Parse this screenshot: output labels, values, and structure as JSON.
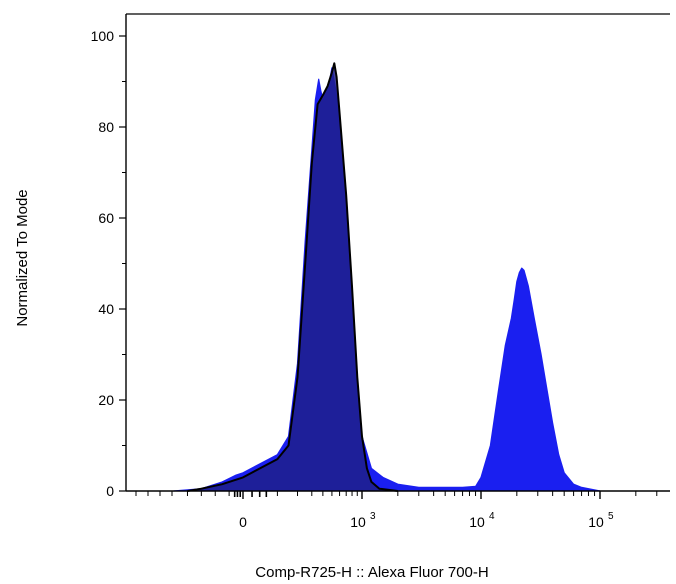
{
  "chart_data": {
    "type": "area",
    "title": "",
    "xlabel": "Comp-R725-H :: Alexa Fluor 700-H",
    "ylabel": "Normalized To Mode",
    "x_scale": "biexponential",
    "xlim": [
      -500,
      400000
    ],
    "ylim": [
      0,
      104
    ],
    "y_ticks": [
      0,
      20,
      40,
      60,
      80,
      100
    ],
    "x_ticks": [
      {
        "value": 0,
        "base": "0",
        "exp": ""
      },
      {
        "value": 1000,
        "base": "10",
        "exp": "3"
      },
      {
        "value": 10000,
        "base": "10",
        "exp": "4"
      },
      {
        "value": 100000,
        "base": "10",
        "exp": "5"
      }
    ],
    "grid": false,
    "legend": "none",
    "series": [
      {
        "fill": "#1a1ff0",
        "stroke": "#1a1ff0",
        "points": [
          [
            -500,
            0
          ],
          [
            -300,
            0.5
          ],
          [
            -150,
            2
          ],
          [
            -50,
            3.5
          ],
          [
            0,
            4
          ],
          [
            100,
            8
          ],
          [
            150,
            12
          ],
          [
            200,
            28
          ],
          [
            250,
            55
          ],
          [
            300,
            75
          ],
          [
            330,
            86
          ],
          [
            360,
            90.5
          ],
          [
            380,
            88
          ],
          [
            400,
            86
          ],
          [
            430,
            88
          ],
          [
            470,
            90
          ],
          [
            500,
            93
          ],
          [
            550,
            88
          ],
          [
            600,
            82
          ],
          [
            700,
            65
          ],
          [
            800,
            45
          ],
          [
            900,
            25
          ],
          [
            1000,
            12
          ],
          [
            1200,
            5
          ],
          [
            1500,
            3
          ],
          [
            2000,
            1.5
          ],
          [
            3000,
            0.8
          ],
          [
            5000,
            0.8
          ],
          [
            7000,
            0.8
          ],
          [
            9000,
            1
          ],
          [
            10000,
            3
          ],
          [
            12000,
            10
          ],
          [
            14000,
            22
          ],
          [
            16000,
            32
          ],
          [
            18000,
            38
          ],
          [
            19000,
            42
          ],
          [
            20000,
            46
          ],
          [
            21000,
            48
          ],
          [
            22000,
            49
          ],
          [
            23000,
            48.5
          ],
          [
            25000,
            45
          ],
          [
            28000,
            38
          ],
          [
            32000,
            30
          ],
          [
            36000,
            22
          ],
          [
            40000,
            15
          ],
          [
            45000,
            8
          ],
          [
            50000,
            4
          ],
          [
            60000,
            1.5
          ],
          [
            70000,
            0.8
          ],
          [
            100000,
            0
          ]
        ]
      },
      {
        "fill": "#20208a",
        "stroke": "#000000",
        "points": [
          [
            -400,
            0
          ],
          [
            -300,
            0.5
          ],
          [
            -150,
            1.5
          ],
          [
            0,
            3
          ],
          [
            100,
            7
          ],
          [
            150,
            10
          ],
          [
            200,
            25
          ],
          [
            250,
            50
          ],
          [
            300,
            72
          ],
          [
            350,
            85
          ],
          [
            400,
            87
          ],
          [
            450,
            89
          ],
          [
            500,
            92
          ],
          [
            530,
            94
          ],
          [
            560,
            91
          ],
          [
            600,
            83
          ],
          [
            700,
            65
          ],
          [
            800,
            45
          ],
          [
            900,
            25
          ],
          [
            1000,
            12
          ],
          [
            1100,
            5
          ],
          [
            1200,
            2
          ],
          [
            1400,
            0.5
          ],
          [
            2000,
            0
          ]
        ]
      }
    ]
  }
}
